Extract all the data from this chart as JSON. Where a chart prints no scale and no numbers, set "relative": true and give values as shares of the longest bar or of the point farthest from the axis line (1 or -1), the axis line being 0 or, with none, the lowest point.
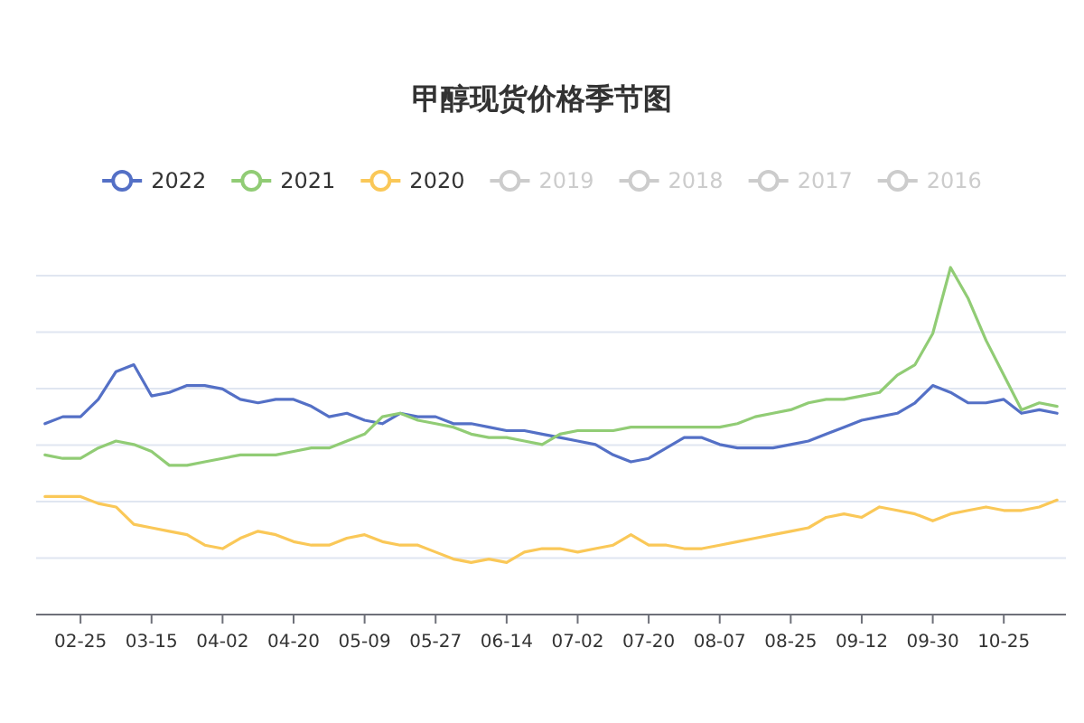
{
  "chart_data": {
    "type": "line",
    "title": "甲醇现货价格季节图",
    "relative": true,
    "legend": "top",
    "marker": "none",
    "line_style": "solid",
    "grid": "y",
    "categories": [
      null,
      null,
      "02-25",
      null,
      null,
      null,
      "03-15",
      null,
      null,
      null,
      "04-02",
      null,
      null,
      null,
      "04-20",
      null,
      null,
      null,
      "05-09",
      null,
      null,
      null,
      "05-27",
      null,
      null,
      null,
      "06-14",
      null,
      null,
      null,
      "07-02",
      null,
      null,
      null,
      "07-20",
      null,
      null,
      null,
      "08-07",
      null,
      null,
      null,
      "08-25",
      null,
      null,
      null,
      "09-12",
      null,
      null,
      null,
      "09-30",
      null,
      null,
      null,
      "10-25",
      null,
      null,
      null
    ],
    "series": [
      {
        "name": "2022",
        "color": "#5470c6",
        "values": [
          0.55,
          0.57,
          0.57,
          0.62,
          0.7,
          0.72,
          0.63,
          0.64,
          0.66,
          0.66,
          0.65,
          0.62,
          0.61,
          0.62,
          0.62,
          0.6,
          0.57,
          0.58,
          0.56,
          0.55,
          0.58,
          0.57,
          0.57,
          0.55,
          0.55,
          0.54,
          0.53,
          0.53,
          0.52,
          0.51,
          0.5,
          0.49,
          0.46,
          0.44,
          0.45,
          0.48,
          0.51,
          0.51,
          0.49,
          0.48,
          0.48,
          0.48,
          0.49,
          0.5,
          0.52,
          0.54,
          0.56,
          0.57,
          0.58,
          0.61,
          0.66,
          0.64,
          0.61,
          0.61,
          0.62,
          0.58,
          0.59,
          0.58
        ]
      },
      {
        "name": "2021",
        "color": "#91cc75",
        "values": [
          0.46,
          0.45,
          0.45,
          0.48,
          0.5,
          0.49,
          0.47,
          0.43,
          0.43,
          0.44,
          0.45,
          0.46,
          0.46,
          0.46,
          0.47,
          0.48,
          0.48,
          0.5,
          0.52,
          0.57,
          0.58,
          0.56,
          0.55,
          0.54,
          0.52,
          0.51,
          0.51,
          0.5,
          0.49,
          0.52,
          0.53,
          0.53,
          0.53,
          0.54,
          0.54,
          0.54,
          0.54,
          0.54,
          0.54,
          0.55,
          0.57,
          0.58,
          0.59,
          0.61,
          0.62,
          0.62,
          0.63,
          0.64,
          0.69,
          0.72,
          0.81,
          1,
          0.91,
          0.79,
          0.69,
          0.59,
          0.61,
          0.6
        ]
      },
      {
        "name": "2020",
        "color": "#fac858",
        "values": [
          0.34,
          0.34,
          0.34,
          0.32,
          0.31,
          0.26,
          0.25,
          0.24,
          0.23,
          0.2,
          0.19,
          0.22,
          0.24,
          0.23,
          0.21,
          0.2,
          0.2,
          0.22,
          0.23,
          0.21,
          0.2,
          0.2,
          0.18,
          0.16,
          0.15,
          0.16,
          0.15,
          0.18,
          0.19,
          0.19,
          0.18,
          0.19,
          0.2,
          0.23,
          0.2,
          0.2,
          0.19,
          0.19,
          0.2,
          0.21,
          0.22,
          0.23,
          0.24,
          0.25,
          0.28,
          0.29,
          0.28,
          0.31,
          0.3,
          0.29,
          0.27,
          0.29,
          0.3,
          0.31,
          0.3,
          0.3,
          0.31,
          0.33
        ]
      },
      {
        "name": "2019",
        "color": "#cccccc",
        "values": [
          null,
          null,
          null,
          null,
          null,
          null,
          null,
          null,
          null,
          null,
          null,
          null,
          null,
          null,
          null,
          null,
          null,
          null,
          null,
          null,
          null,
          null,
          null,
          null,
          null,
          null,
          null,
          null,
          null,
          null,
          null,
          null,
          null,
          null,
          null,
          null,
          null,
          null,
          null,
          null,
          null,
          null,
          null,
          null,
          null,
          null,
          null,
          null,
          null,
          null,
          null,
          null,
          null,
          null,
          null,
          null,
          null,
          null
        ]
      },
      {
        "name": "2018",
        "color": "#cccccc",
        "values": [
          null,
          null,
          null,
          null,
          null,
          null,
          null,
          null,
          null,
          null,
          null,
          null,
          null,
          null,
          null,
          null,
          null,
          null,
          null,
          null,
          null,
          null,
          null,
          null,
          null,
          null,
          null,
          null,
          null,
          null,
          null,
          null,
          null,
          null,
          null,
          null,
          null,
          null,
          null,
          null,
          null,
          null,
          null,
          null,
          null,
          null,
          null,
          null,
          null,
          null,
          null,
          null,
          null,
          null,
          null,
          null,
          null,
          null
        ]
      },
      {
        "name": "2017",
        "color": "#cccccc",
        "values": [
          null,
          null,
          null,
          null,
          null,
          null,
          null,
          null,
          null,
          null,
          null,
          null,
          null,
          null,
          null,
          null,
          null,
          null,
          null,
          null,
          null,
          null,
          null,
          null,
          null,
          null,
          null,
          null,
          null,
          null,
          null,
          null,
          null,
          null,
          null,
          null,
          null,
          null,
          null,
          null,
          null,
          null,
          null,
          null,
          null,
          null,
          null,
          null,
          null,
          null,
          null,
          null,
          null,
          null,
          null,
          null,
          null,
          null
        ]
      },
      {
        "name": "2016",
        "color": "#cccccc",
        "values": [
          null,
          null,
          null,
          null,
          null,
          null,
          null,
          null,
          null,
          null,
          null,
          null,
          null,
          null,
          null,
          null,
          null,
          null,
          null,
          null,
          null,
          null,
          null,
          null,
          null,
          null,
          null,
          null,
          null,
          null,
          null,
          null,
          null,
          null,
          null,
          null,
          null,
          null,
          null,
          null,
          null,
          null,
          null,
          null,
          null,
          null,
          null,
          null,
          null,
          null,
          null,
          null,
          null,
          null,
          null,
          null,
          null,
          null
        ]
      }
    ]
  }
}
